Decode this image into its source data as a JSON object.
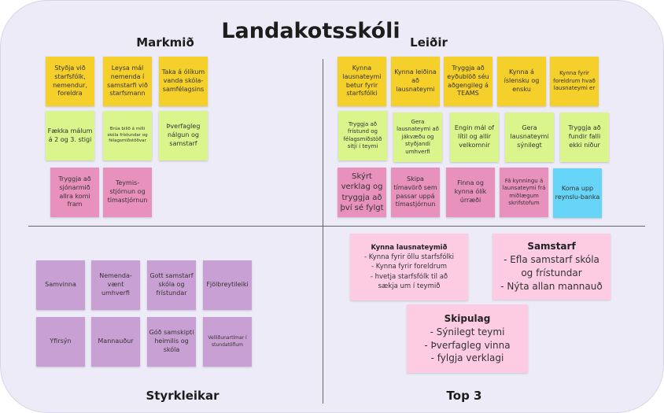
{
  "title": "Landakotsskóli",
  "sections": {
    "markmid": "Markmið",
    "leidir": "Leiðir",
    "styrkleikar": "Styrkleikar",
    "top3": "Top 3"
  },
  "colors": {
    "yellow": "#f5cf2a",
    "green": "#d9f58c",
    "pink": "#e991bd",
    "blue": "#66d5f7",
    "purple": "#c9a0d4",
    "top3": "#fdcce2"
  },
  "markmid": [
    "Styðja við starfsfólk, nemendur, foreldra",
    "Leysa mál nemenda í samstarfi við starfsmann",
    "Taka á ólíkum vanda skóla-samfélagsins",
    "Fækka málum á 2 og 3. stigi",
    "Brúa bilið á milli skóla frístundar og félagsmiðstöðvar",
    "Þverfagleg nálgun og samstarf",
    "Tryggja að sjónarmið allra komi fram",
    "Teymis-stjórnun og tímastjórnun"
  ],
  "leidir": [
    "Kynna lausnateymi betur fyrir starfsfólki",
    "Kynna leiðina að lausnateymi",
    "Tryggja að eyðublöð séu aðgengileg á TEAMS",
    "Kynna á íslensku og ensku",
    "Kynna fyrir foreldrum hvað lausnateymi er",
    "Tryggja að frístund og félagsmiðstöð sitji í teymi",
    "Gera lausnateymi að jákvæðu og styðjandi umhverfi",
    "Engin mál of lítil og allir velkomnir",
    "Gera lausnateymi sýnilegt",
    "Tryggja að fundir falli ekki niður",
    "Skýrt verklag og tryggja að því sé fylgt",
    "Skipa tímavörð sem passar uppá tímastjórnun",
    "Finna og kynna ólík úrræði",
    "Fá kynningu á launsateymi frá miðlægum skrifstofum",
    "Koma upp reynslu-banka"
  ],
  "styrkleikar": [
    "Samvinna",
    "Nemenda-vænt umhverfi",
    "Gott samstarf skóla og frístundar",
    "Fjölbreytileiki",
    "Yfirsýn",
    "Mannauður",
    "Góð samskipti heimilis og skóla",
    "Velliðunartímar í stundatöflum"
  ],
  "top3": [
    {
      "title": "Kynna lausnateymið",
      "lines": [
        "- Kynna fyrir öllu starfsfólki",
        "- Kynna fyrir foreldrum",
        "- hvetja starfsfólk til að sækja um í teymið"
      ]
    },
    {
      "title": "Samstarf",
      "lines": [
        "- Efla samstarf skóla og frístundar",
        "- Nýta allan mannauð"
      ]
    },
    {
      "title": "Skipulag",
      "lines": [
        "- Sýnilegt teymi",
        "- Þverfagleg vinna",
        "- fylgja verklagi"
      ]
    }
  ]
}
